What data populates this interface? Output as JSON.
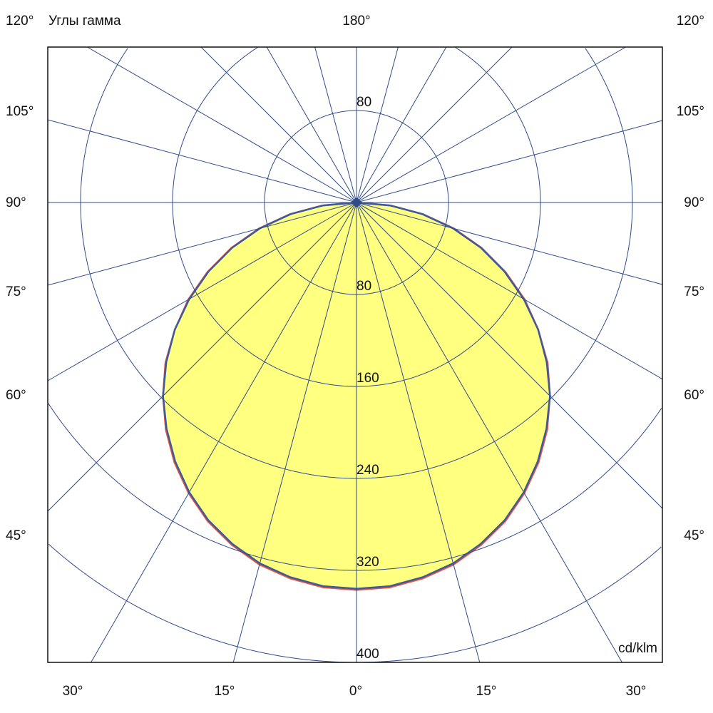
{
  "chart_data": {
    "type": "polar",
    "title": "Углы гамма",
    "unit_label": "cd/klm",
    "radial_ticks": [
      80,
      160,
      240,
      320,
      400
    ],
    "radial_max": 400,
    "angle_step_deg": 15,
    "top_angle_label": "180°",
    "side_angle_labels": [
      "120°",
      "105°",
      "90°",
      "75°",
      "60°",
      "45°"
    ],
    "bottom_angle_labels": [
      "30°",
      "15°",
      "0°",
      "15°",
      "30°"
    ],
    "upper_ring_label": "80",
    "gamma": [
      0,
      5,
      10,
      15,
      20,
      25,
      30,
      35,
      40,
      45,
      50,
      55,
      60,
      65,
      70,
      75,
      80,
      85,
      90
    ],
    "series": [
      {
        "color": "#e8553c",
        "values": [
          337,
          336,
          332,
          326,
          317,
          306,
          292,
          276,
          258,
          238,
          217,
          193,
          169,
          143,
          116,
          88,
          59,
          30,
          0
        ]
      },
      {
        "color": "#3d5a9e",
        "values": [
          336,
          335,
          331,
          325,
          316,
          305,
          291,
          275,
          257,
          238,
          216,
          193,
          168,
          142,
          115,
          87,
          58,
          29,
          0
        ]
      }
    ],
    "fill_color": "#ffff80",
    "grid_color": "#2f4b8c",
    "grid": true
  }
}
